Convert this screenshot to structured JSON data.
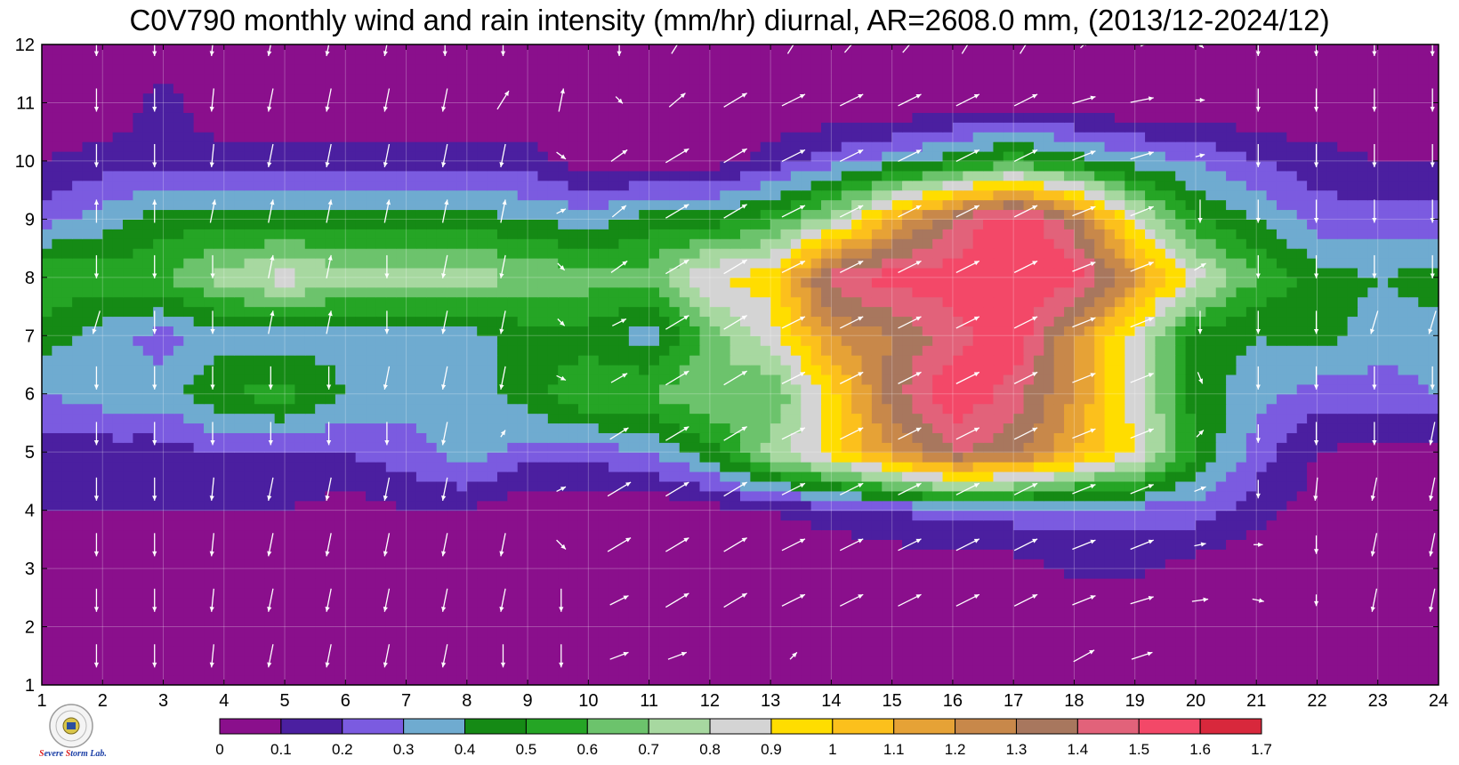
{
  "chart_data": {
    "type": "heatmap",
    "title": "C0V790 monthly wind and rain intensity (mm/hr) diurnal, AR=2608.0 mm, (2013/12-2024/12)",
    "xlabel": "",
    "ylabel": "",
    "x_ticks": [
      1,
      2,
      3,
      4,
      5,
      6,
      7,
      8,
      9,
      10,
      11,
      12,
      13,
      14,
      15,
      16,
      17,
      18,
      19,
      20,
      21,
      22,
      23,
      24
    ],
    "y_ticks": [
      1,
      2,
      3,
      4,
      5,
      6,
      7,
      8,
      9,
      10,
      11,
      12
    ],
    "xlim": [
      1,
      24
    ],
    "ylim": [
      1,
      12
    ],
    "grid": true,
    "colorbar": {
      "levels": [
        0,
        0.1,
        0.2,
        0.3,
        0.4,
        0.5,
        0.6,
        0.7,
        0.8,
        0.9,
        1,
        1.1,
        1.2,
        1.3,
        1.4,
        1.5,
        1.6,
        1.7
      ],
      "labels": [
        "0",
        "0.1",
        "0.2",
        "0.3",
        "0.4",
        "0.5",
        "0.6",
        "0.7",
        "0.8",
        "0.9",
        "1",
        "1.1",
        "1.2",
        "1.3",
        "1.4",
        "1.5",
        "1.6",
        "1.7"
      ],
      "colors": [
        "#8a0f8c",
        "#4b1fa0",
        "#7b5be0",
        "#6fabd0",
        "#158a15",
        "#25a525",
        "#6cc36c",
        "#a7d8a0",
        "#d4d4d4",
        "#ffdd00",
        "#fcc01c",
        "#e6a236",
        "#c8884a",
        "#a8775e",
        "#e2627a",
        "#f34868",
        "#d8283c"
      ]
    },
    "values": [
      [
        0,
        0,
        0,
        0,
        0,
        0,
        0,
        0.05,
        0,
        0,
        0,
        0,
        0,
        0,
        0,
        0,
        0,
        0,
        0,
        0,
        0,
        0,
        0,
        0
      ],
      [
        0,
        0,
        0,
        0,
        0,
        0,
        0,
        0,
        0,
        0,
        0,
        0,
        0,
        0,
        0,
        0,
        0,
        0,
        0,
        0,
        0,
        0,
        0,
        0
      ],
      [
        0,
        0,
        0,
        0,
        0,
        0,
        0,
        0,
        0,
        0,
        0,
        0,
        0,
        0,
        0.02,
        0.05,
        0.05,
        0.12,
        0.12,
        0.05,
        0,
        0,
        0,
        0
      ],
      [
        0.1,
        0.1,
        0.1,
        0.1,
        0.1,
        0.05,
        0.1,
        0.1,
        0,
        0,
        0,
        0.05,
        0.1,
        0.15,
        0.2,
        0.25,
        0.25,
        0.25,
        0.25,
        0.25,
        0.15,
        0.05,
        0,
        0
      ],
      [
        0.15,
        0.15,
        0.15,
        0.2,
        0.2,
        0.2,
        0.25,
        0.35,
        0.25,
        0.25,
        0.3,
        0.45,
        0.75,
        0.95,
        1.2,
        1.4,
        1.35,
        1.1,
        0.9,
        0.5,
        0.25,
        0.1,
        0.05,
        0.05
      ],
      [
        0.3,
        0.35,
        0.35,
        0.5,
        0.55,
        0.4,
        0.35,
        0.35,
        0.45,
        0.6,
        0.6,
        0.7,
        0.6,
        0.95,
        1.35,
        1.6,
        1.45,
        1.2,
        0.85,
        0.45,
        0.35,
        0.25,
        0.25,
        0.3
      ],
      [
        0.45,
        0.35,
        0.25,
        0.35,
        0.35,
        0.35,
        0.35,
        0.35,
        0.45,
        0.45,
        0.35,
        0.65,
        0.85,
        1.2,
        1.3,
        1.45,
        1.6,
        1.2,
        0.85,
        0.45,
        0.4,
        0.45,
        0.35,
        0.35
      ],
      [
        0.6,
        0.55,
        0.6,
        0.75,
        0.85,
        0.75,
        0.75,
        0.75,
        0.7,
        0.65,
        0.65,
        0.9,
        0.95,
        1.45,
        1.55,
        1.55,
        1.6,
        1.55,
        1.2,
        0.85,
        0.6,
        0.45,
        0.4,
        0.45
      ],
      [
        0.25,
        0.35,
        0.45,
        0.45,
        0.45,
        0.45,
        0.45,
        0.45,
        0.4,
        0.35,
        0.45,
        0.45,
        0.55,
        0.75,
        1.1,
        1.4,
        1.6,
        1.35,
        0.85,
        0.5,
        0.4,
        0.25,
        0.25,
        0.25
      ],
      [
        0.1,
        0.15,
        0.15,
        0.15,
        0.15,
        0.15,
        0.15,
        0.15,
        0.15,
        0.05,
        0.05,
        0.05,
        0.15,
        0.25,
        0.35,
        0.45,
        0.55,
        0.45,
        0.35,
        0.3,
        0.2,
        0.15,
        0.1,
        0.1
      ],
      [
        0,
        0,
        0.15,
        0,
        0,
        0,
        0,
        0,
        0,
        0,
        0,
        0,
        0,
        0,
        0,
        0.02,
        0.05,
        0.02,
        0,
        0,
        0,
        0,
        0,
        0
      ],
      [
        0,
        0,
        0,
        0,
        0,
        0,
        0,
        0,
        0,
        0,
        0,
        0,
        0,
        0,
        0,
        0,
        0,
        0,
        0,
        0,
        0,
        0,
        0,
        0
      ]
    ],
    "wind_rows": [
      [
        [
          0,
          -1
        ],
        [
          0,
          -1
        ],
        [
          -0.1,
          -1
        ],
        [
          -0.2,
          -1
        ],
        [
          -0.2,
          -1
        ],
        [
          -0.2,
          -1
        ],
        [
          -0.2,
          -1
        ],
        [
          0,
          -1
        ],
        [
          0,
          -1
        ],
        [
          0.8,
          0.3
        ],
        [
          0.8,
          0.3
        ],
        [
          0,
          0
        ],
        [
          0.3,
          0.3
        ],
        [
          0,
          0
        ],
        [
          0,
          0
        ],
        [
          0,
          0
        ],
        [
          0,
          0
        ],
        [
          0.9,
          0.5
        ],
        [
          0.9,
          0.3
        ],
        [
          0,
          0
        ],
        [
          0,
          0
        ],
        [
          0,
          0
        ],
        [
          0,
          0
        ],
        [
          0,
          0
        ]
      ],
      [
        [
          0,
          -1
        ],
        [
          0,
          -1
        ],
        [
          -0.1,
          -1
        ],
        [
          -0.2,
          -1
        ],
        [
          -0.2,
          -1
        ],
        [
          -0.2,
          -1
        ],
        [
          -0.2,
          -1
        ],
        [
          -0.2,
          -1
        ],
        [
          0,
          -1
        ],
        [
          0.8,
          0.4
        ],
        [
          1,
          0.6
        ],
        [
          1,
          0.6
        ],
        [
          1,
          0.5
        ],
        [
          1,
          0.5
        ],
        [
          1,
          0.5
        ],
        [
          1,
          0.5
        ],
        [
          1,
          0.5
        ],
        [
          1,
          0.4
        ],
        [
          1,
          0.3
        ],
        [
          0.7,
          0.1
        ],
        [
          0.5,
          -0.1
        ],
        [
          0,
          -0.5
        ],
        [
          -0.2,
          -1
        ],
        [
          -0.2,
          -1
        ]
      ],
      [
        [
          0,
          -1
        ],
        [
          0,
          -1
        ],
        [
          -0.1,
          -1
        ],
        [
          -0.2,
          -1
        ],
        [
          -0.2,
          -1
        ],
        [
          -0.2,
          -1
        ],
        [
          -0.2,
          -1
        ],
        [
          -0.2,
          -1
        ],
        [
          0.4,
          -0.4
        ],
        [
          1,
          0.6
        ],
        [
          1,
          0.6
        ],
        [
          1,
          0.6
        ],
        [
          1,
          0.5
        ],
        [
          1,
          0.5
        ],
        [
          1,
          0.5
        ],
        [
          1,
          0.5
        ],
        [
          1,
          0.5
        ],
        [
          1,
          0.4
        ],
        [
          1,
          0.4
        ],
        [
          0.5,
          0.1
        ],
        [
          0.4,
          0
        ],
        [
          0,
          -0.8
        ],
        [
          -0.2,
          -1
        ],
        [
          -0.2,
          -1
        ]
      ],
      [
        [
          0,
          -1
        ],
        [
          0,
          -1
        ],
        [
          -0.1,
          -1
        ],
        [
          -0.2,
          -1
        ],
        [
          -0.2,
          -1
        ],
        [
          -0.2,
          -1
        ],
        [
          -0.2,
          -1
        ],
        [
          0,
          0
        ],
        [
          0.4,
          0.2
        ],
        [
          1,
          0.6
        ],
        [
          1,
          0.6
        ],
        [
          1,
          0.6
        ],
        [
          1,
          0.5
        ],
        [
          1,
          0.5
        ],
        [
          1,
          0.5
        ],
        [
          1,
          0.5
        ],
        [
          1,
          0.5
        ],
        [
          1,
          0.4
        ],
        [
          1,
          0.4
        ],
        [
          0.5,
          0.2
        ],
        [
          0,
          -0.8
        ],
        [
          -0.1,
          -1
        ],
        [
          -0.2,
          -1
        ],
        [
          -0.2,
          -1
        ]
      ],
      [
        [
          0,
          -1
        ],
        [
          0,
          -1
        ],
        [
          0,
          -1
        ],
        [
          0,
          -1
        ],
        [
          0,
          -1
        ],
        [
          0,
          -1
        ],
        [
          -0.2,
          -1
        ],
        [
          0.2,
          0.3
        ],
        [
          0,
          0
        ],
        [
          0.8,
          0.5
        ],
        [
          1,
          0.6
        ],
        [
          1,
          0.6
        ],
        [
          1,
          0.5
        ],
        [
          1,
          0.5
        ],
        [
          1,
          0.5
        ],
        [
          1,
          0.5
        ],
        [
          1,
          0.5
        ],
        [
          1,
          0.4
        ],
        [
          1,
          0.4
        ],
        [
          0.3,
          0.3
        ],
        [
          0,
          -0.8
        ],
        [
          0,
          -1
        ],
        [
          0,
          -1
        ],
        [
          -0.2,
          -1
        ]
      ],
      [
        [
          0,
          -1
        ],
        [
          0,
          -1
        ],
        [
          0,
          -1
        ],
        [
          0,
          -1
        ],
        [
          0,
          -1
        ],
        [
          -0.2,
          -1
        ],
        [
          -0.2,
          -1
        ],
        [
          -0.2,
          -1
        ],
        [
          0.4,
          -0.2
        ],
        [
          0.7,
          0.4
        ],
        [
          1,
          0.6
        ],
        [
          1,
          0.6
        ],
        [
          1,
          0.5
        ],
        [
          1,
          0.5
        ],
        [
          1,
          0.5
        ],
        [
          1,
          0.5
        ],
        [
          1,
          0.5
        ],
        [
          1,
          0.4
        ],
        [
          1,
          0.4
        ],
        [
          0.2,
          -0.5
        ],
        [
          0,
          -1
        ],
        [
          0,
          -1
        ],
        [
          0,
          -1
        ],
        [
          0,
          -1
        ]
      ],
      [
        [
          -0.3,
          -1
        ],
        [
          0,
          -1
        ],
        [
          0,
          -1
        ],
        [
          0.2,
          1
        ],
        [
          0.2,
          1
        ],
        [
          0,
          -1
        ],
        [
          -0.2,
          -1
        ],
        [
          -0.2,
          -1
        ],
        [
          0.3,
          -0.3
        ],
        [
          0.6,
          0.3
        ],
        [
          1,
          0.6
        ],
        [
          1,
          0.6
        ],
        [
          1,
          0.5
        ],
        [
          1,
          0.5
        ],
        [
          1,
          0.5
        ],
        [
          1,
          0.5
        ],
        [
          1,
          0.5
        ],
        [
          1,
          0.4
        ],
        [
          1,
          0.4
        ],
        [
          0,
          -1
        ],
        [
          0,
          -1
        ],
        [
          0,
          -1
        ],
        [
          -0.3,
          -1
        ],
        [
          -0.3,
          -1
        ]
      ],
      [
        [
          0,
          -1
        ],
        [
          0,
          -1
        ],
        [
          0,
          -1
        ],
        [
          0.2,
          1
        ],
        [
          0.2,
          1
        ],
        [
          0,
          -1
        ],
        [
          -0.2,
          -1
        ],
        [
          -0.2,
          -1
        ],
        [
          0.3,
          -0.3
        ],
        [
          0.7,
          0.5
        ],
        [
          1,
          0.6
        ],
        [
          1,
          0.6
        ],
        [
          1,
          0.5
        ],
        [
          1,
          0.5
        ],
        [
          1,
          0.5
        ],
        [
          1,
          0.5
        ],
        [
          1,
          0.5
        ],
        [
          1,
          0.4
        ],
        [
          1,
          0.4
        ],
        [
          0.5,
          0.3
        ],
        [
          0,
          -1
        ],
        [
          0,
          -1
        ],
        [
          0,
          -1
        ],
        [
          0,
          -1
        ]
      ],
      [
        [
          0,
          1
        ],
        [
          0,
          1
        ],
        [
          0.2,
          1
        ],
        [
          0.2,
          1
        ],
        [
          0.2,
          1
        ],
        [
          0.2,
          1
        ],
        [
          0.2,
          1
        ],
        [
          0.2,
          1
        ],
        [
          0.4,
          0.2
        ],
        [
          0.6,
          0.5
        ],
        [
          1,
          0.6
        ],
        [
          1,
          0.6
        ],
        [
          1,
          0.5
        ],
        [
          1,
          0.5
        ],
        [
          1,
          0.5
        ],
        [
          1,
          0.5
        ],
        [
          1,
          0.5
        ],
        [
          1,
          0.4
        ],
        [
          1,
          0.4
        ],
        [
          0,
          -1
        ],
        [
          0,
          -1
        ],
        [
          0,
          -1
        ],
        [
          0,
          -1
        ],
        [
          0,
          -1
        ]
      ],
      [
        [
          0,
          -1
        ],
        [
          0,
          -1
        ],
        [
          -0.1,
          -1
        ],
        [
          -0.2,
          -1
        ],
        [
          -0.2,
          -1
        ],
        [
          -0.2,
          -1
        ],
        [
          -0.2,
          -1
        ],
        [
          -0.2,
          -1
        ],
        [
          0.4,
          -0.3
        ],
        [
          0.7,
          0.5
        ],
        [
          1,
          0.6
        ],
        [
          1,
          0.6
        ],
        [
          1,
          0.5
        ],
        [
          1,
          0.5
        ],
        [
          1,
          0.5
        ],
        [
          1,
          0.5
        ],
        [
          1,
          0.5
        ],
        [
          1,
          0.4
        ],
        [
          1,
          0.3
        ],
        [
          0.4,
          0.1
        ],
        [
          0,
          -1
        ],
        [
          0,
          -1
        ],
        [
          0,
          -1
        ],
        [
          0,
          -1
        ]
      ],
      [
        [
          0,
          -1
        ],
        [
          0,
          -1
        ],
        [
          -0.1,
          -1
        ],
        [
          -0.2,
          -1
        ],
        [
          -0.2,
          -1
        ],
        [
          -0.2,
          -1
        ],
        [
          -0.2,
          -1
        ],
        [
          0.5,
          0.8
        ],
        [
          0.2,
          1
        ],
        [
          0.3,
          -0.3
        ],
        [
          0.7,
          0.6
        ],
        [
          1,
          0.6
        ],
        [
          1,
          0.5
        ],
        [
          1,
          0.5
        ],
        [
          1,
          0.5
        ],
        [
          1,
          0.5
        ],
        [
          1,
          0.5
        ],
        [
          1,
          0.3
        ],
        [
          1,
          0.2
        ],
        [
          0.4,
          0
        ],
        [
          0,
          -1
        ],
        [
          0,
          -1
        ],
        [
          0,
          -1
        ],
        [
          0,
          -1
        ]
      ],
      [
        [
          0,
          -1
        ],
        [
          0,
          -1
        ],
        [
          -0.1,
          -1
        ],
        [
          -0.2,
          -1
        ],
        [
          -0.2,
          -1
        ],
        [
          -0.2,
          -1
        ],
        [
          0,
          -1
        ],
        [
          0,
          -1
        ],
        [
          0,
          0
        ],
        [
          0,
          -1
        ],
        [
          0.5,
          0.8
        ],
        [
          0,
          0
        ],
        [
          0.5,
          0.8
        ],
        [
          0.6,
          0.7
        ],
        [
          0.6,
          0.7
        ],
        [
          0.5,
          0.8
        ],
        [
          0.5,
          0.8
        ],
        [
          0.3,
          0.3
        ],
        [
          0.3,
          0
        ],
        [
          0.3,
          -0.3
        ],
        [
          0,
          -1
        ],
        [
          0,
          -1
        ],
        [
          0,
          -1
        ],
        [
          0,
          -1
        ]
      ]
    ]
  }
}
